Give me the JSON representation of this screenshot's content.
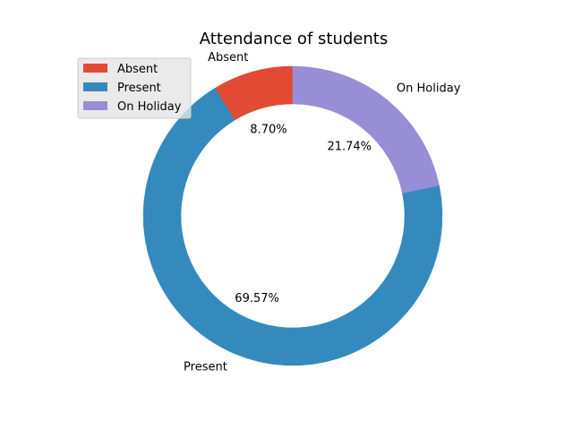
{
  "chart_data": {
    "type": "pie",
    "style": "donut",
    "title": "Attendance of students",
    "labels": [
      "Absent",
      "Present",
      "On Holiday"
    ],
    "values": [
      8.7,
      69.57,
      21.74
    ],
    "percent_labels": [
      "8.70%",
      "69.57%",
      "21.74%"
    ],
    "colors": [
      "#E24A33",
      "#348ABD",
      "#988ED5"
    ],
    "start_angle_deg": 90,
    "direction": "counterclockwise",
    "legend": {
      "placement": "top-left",
      "entries": [
        "Absent",
        "Present",
        "On Holiday"
      ]
    }
  }
}
